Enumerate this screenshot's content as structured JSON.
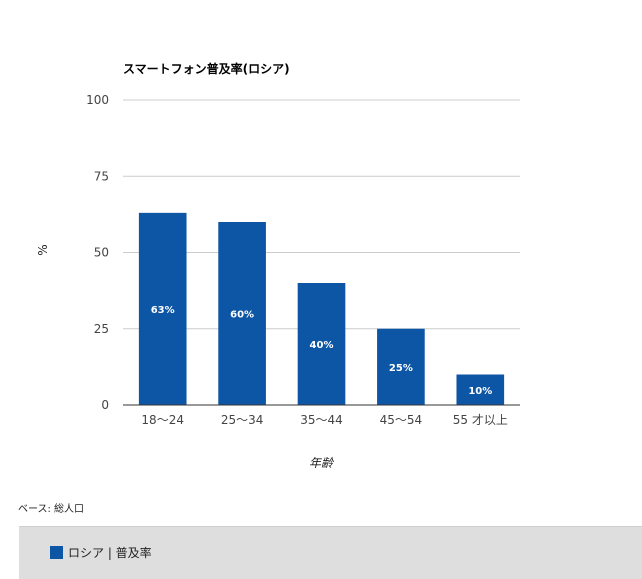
{
  "chart_data": {
    "type": "bar",
    "title": "スマートフォン普及率(ロシア)",
    "xlabel": "年齢",
    "ylabel": "%",
    "categories": [
      "18〜24",
      "25〜34",
      "35〜44",
      "45〜54",
      "55 才以上"
    ],
    "series": [
      {
        "name": "ロシア | 普及率",
        "values": [
          63,
          60,
          40,
          25,
          10
        ],
        "color": "#0d56a6"
      }
    ],
    "data_labels": [
      "63%",
      "60%",
      "40%",
      "25%",
      "10%"
    ],
    "ylim": [
      0,
      100
    ],
    "yticks": [
      0,
      25,
      50,
      75,
      100
    ],
    "grid": true,
    "legend_position": "bottom"
  },
  "note": "ベース: 総人口",
  "legend": {
    "label": "ロシア | 普及率",
    "color": "#0d56a6"
  }
}
